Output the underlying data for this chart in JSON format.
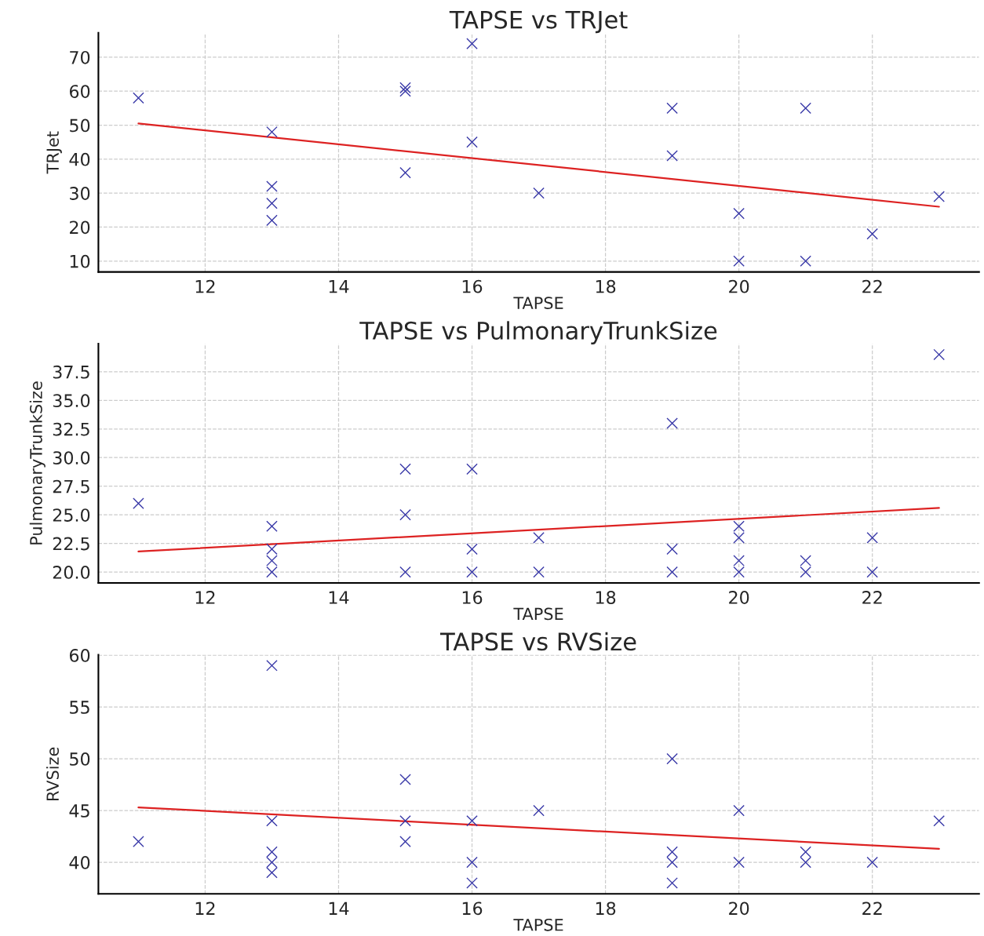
{
  "chart_data": [
    {
      "type": "scatter",
      "title": "TAPSE vs TRJet",
      "xlabel": "TAPSE",
      "ylabel": "TRJet",
      "xlim": [
        10.4,
        23.6
      ],
      "xticks": [
        12,
        14,
        16,
        18,
        20,
        22
      ],
      "ylim": [
        6.8,
        77.2
      ],
      "yticks": [
        10,
        20,
        30,
        40,
        50,
        60,
        70
      ],
      "grid": true,
      "series": [
        {
          "type": "scatter",
          "marker": "cross",
          "color": "#3a3aa8",
          "x": [
            11,
            13,
            13,
            13,
            13,
            15,
            15,
            15,
            16,
            16,
            17,
            19,
            19,
            20,
            20,
            21,
            21,
            22,
            23
          ],
          "values": [
            58,
            48,
            32,
            27,
            22,
            61,
            60,
            36,
            74,
            45,
            30,
            55,
            41,
            24,
            10,
            55,
            10,
            18,
            29
          ]
        },
        {
          "type": "line",
          "color": "#dd2222",
          "x": [
            11,
            23
          ],
          "values": [
            50.5,
            26
          ]
        }
      ]
    },
    {
      "type": "scatter",
      "title": "TAPSE vs PulmonaryTrunkSize",
      "xlabel": "TAPSE",
      "ylabel": "PulmonaryTrunkSize",
      "xlim": [
        10.4,
        23.6
      ],
      "xticks": [
        12,
        14,
        16,
        18,
        20,
        22
      ],
      "ylim": [
        19.05,
        39.95
      ],
      "yticks": [
        {
          "value": 20,
          "label": "20.0"
        },
        22.5,
        {
          "value": 25,
          "label": "25.0"
        },
        27.5,
        {
          "value": 30,
          "label": "30.0"
        },
        32.5,
        {
          "value": 35,
          "label": "35.0"
        },
        37.5
      ],
      "grid": true,
      "series": [
        {
          "type": "scatter",
          "marker": "cross",
          "color": "#3a3aa8",
          "x": [
            11,
            13,
            13,
            13,
            13,
            15,
            15,
            15,
            16,
            16,
            16,
            17,
            17,
            19,
            19,
            19,
            20,
            20,
            20,
            20,
            21,
            21,
            22,
            22,
            23
          ],
          "values": [
            26,
            24,
            22,
            21,
            20,
            29,
            25,
            20,
            29,
            22,
            20,
            23,
            20,
            33,
            22,
            20,
            24,
            23,
            21,
            20,
            21,
            20,
            23,
            20,
            39
          ]
        },
        {
          "type": "line",
          "color": "#dd2222",
          "x": [
            11,
            23
          ],
          "values": [
            21.8,
            25.6
          ]
        }
      ]
    },
    {
      "type": "scatter",
      "title": "TAPSE vs RVSize",
      "xlabel": "TAPSE",
      "ylabel": "RVSize",
      "xlim": [
        10.4,
        23.6
      ],
      "xticks": [
        12,
        14,
        16,
        18,
        20,
        22
      ],
      "ylim": [
        36.95,
        60.05
      ],
      "yticks": [
        40,
        45,
        50,
        55,
        60
      ],
      "grid": true,
      "series": [
        {
          "type": "scatter",
          "marker": "cross",
          "color": "#3a3aa8",
          "x": [
            11,
            13,
            13,
            13,
            13,
            13,
            15,
            15,
            15,
            16,
            16,
            16,
            17,
            19,
            19,
            19,
            19,
            20,
            20,
            21,
            21,
            22,
            23
          ],
          "values": [
            42,
            59,
            44,
            41,
            40,
            39,
            48,
            44,
            42,
            44,
            40,
            38,
            45,
            50,
            41,
            40,
            38,
            45,
            40,
            41,
            40,
            40,
            44
          ]
        },
        {
          "type": "line",
          "color": "#dd2222",
          "x": [
            11,
            23
          ],
          "values": [
            45.3,
            41.3
          ]
        }
      ]
    }
  ]
}
